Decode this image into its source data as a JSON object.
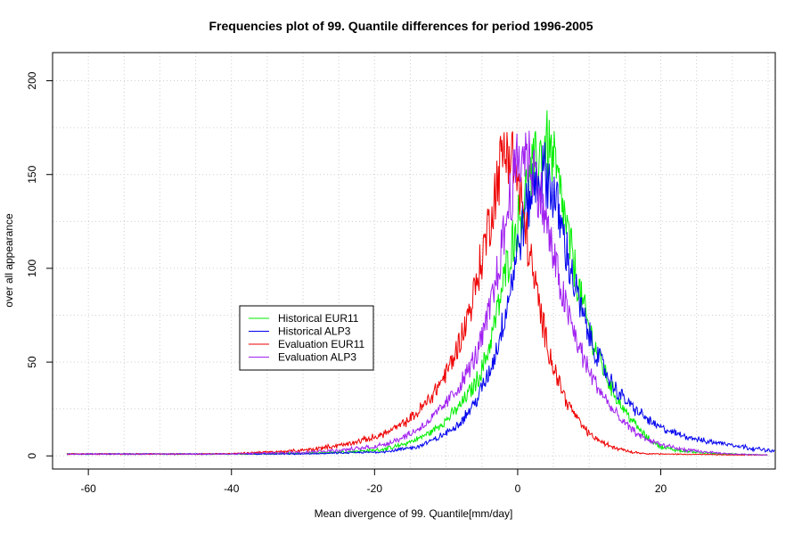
{
  "chart_data": {
    "type": "line",
    "title": "Frequencies plot of 99. Quantile differences for period 1996-2005",
    "xlabel": "Mean divergence of 99. Quantile[mm/day]",
    "ylabel": "over all appearance",
    "xlim": [
      -65,
      36
    ],
    "ylim": [
      -7,
      215
    ],
    "x_ticks": [
      -60,
      -40,
      -20,
      0,
      20
    ],
    "y_ticks": [
      0,
      50,
      100,
      150,
      200
    ],
    "grid": true,
    "legend_position": "center-left",
    "series": [
      {
        "name": "Historical EUR11",
        "color": "#00ee00",
        "points": [
          [
            -63,
            1
          ],
          [
            -50,
            1
          ],
          [
            -40,
            1
          ],
          [
            -35,
            1
          ],
          [
            -30,
            1.5
          ],
          [
            -25,
            2
          ],
          [
            -20,
            3
          ],
          [
            -18,
            4
          ],
          [
            -16,
            6
          ],
          [
            -14,
            9
          ],
          [
            -12,
            13
          ],
          [
            -10,
            19
          ],
          [
            -8,
            27
          ],
          [
            -6,
            38
          ],
          [
            -5,
            46
          ],
          [
            -4,
            58
          ],
          [
            -3,
            74
          ],
          [
            -2,
            92
          ],
          [
            -1,
            110
          ],
          [
            0,
            124
          ],
          [
            1,
            138
          ],
          [
            2,
            150
          ],
          [
            3,
            160
          ],
          [
            4,
            166
          ],
          [
            5,
            157
          ],
          [
            6,
            138
          ],
          [
            7,
            118
          ],
          [
            8,
            99
          ],
          [
            9,
            82
          ],
          [
            10,
            68
          ],
          [
            11,
            56
          ],
          [
            12,
            46
          ],
          [
            13,
            37
          ],
          [
            14,
            30
          ],
          [
            15,
            24
          ],
          [
            16,
            19
          ],
          [
            17,
            14
          ],
          [
            18,
            10
          ],
          [
            19,
            7
          ],
          [
            20,
            5
          ],
          [
            22,
            3
          ],
          [
            25,
            2
          ],
          [
            28,
            1
          ],
          [
            30,
            1
          ],
          [
            35,
            0.5
          ]
        ]
      },
      {
        "name": "Historical ALP3",
        "color": "#0000ee",
        "points": [
          [
            -63,
            1
          ],
          [
            -50,
            1
          ],
          [
            -40,
            1
          ],
          [
            -35,
            1
          ],
          [
            -30,
            1
          ],
          [
            -25,
            1.5
          ],
          [
            -20,
            2
          ],
          [
            -18,
            2.5
          ],
          [
            -16,
            3.5
          ],
          [
            -14,
            5
          ],
          [
            -12,
            8
          ],
          [
            -10,
            12
          ],
          [
            -8,
            18
          ],
          [
            -6,
            28
          ],
          [
            -4,
            44
          ],
          [
            -3,
            56
          ],
          [
            -2,
            72
          ],
          [
            -1,
            90
          ],
          [
            0,
            110
          ],
          [
            1,
            128
          ],
          [
            2,
            142
          ],
          [
            3,
            150
          ],
          [
            4,
            150
          ],
          [
            5,
            140
          ],
          [
            6,
            124
          ],
          [
            7,
            106
          ],
          [
            8,
            90
          ],
          [
            9,
            76
          ],
          [
            10,
            64
          ],
          [
            11,
            55
          ],
          [
            12,
            47
          ],
          [
            13,
            40
          ],
          [
            14,
            34
          ],
          [
            15,
            30
          ],
          [
            16,
            26
          ],
          [
            17,
            23
          ],
          [
            18,
            20
          ],
          [
            19,
            17
          ],
          [
            20,
            15
          ],
          [
            22,
            12
          ],
          [
            24,
            10
          ],
          [
            26,
            8
          ],
          [
            28,
            7
          ],
          [
            30,
            6
          ],
          [
            32,
            4.5
          ],
          [
            34,
            3.5
          ],
          [
            35,
            3
          ],
          [
            36,
            2.5
          ]
        ]
      },
      {
        "name": "Evaluation EUR11",
        "color": "#ee0000",
        "points": [
          [
            -63,
            1
          ],
          [
            -55,
            1
          ],
          [
            -50,
            1
          ],
          [
            -45,
            1
          ],
          [
            -40,
            1.2
          ],
          [
            -38,
            1.5
          ],
          [
            -36,
            2
          ],
          [
            -34,
            2
          ],
          [
            -32,
            2.5
          ],
          [
            -30,
            3
          ],
          [
            -28,
            4
          ],
          [
            -26,
            5
          ],
          [
            -24,
            6
          ],
          [
            -22,
            8
          ],
          [
            -20,
            10
          ],
          [
            -18,
            13
          ],
          [
            -16,
            17
          ],
          [
            -14,
            23
          ],
          [
            -12,
            32
          ],
          [
            -10,
            44
          ],
          [
            -9,
            52
          ],
          [
            -8,
            62
          ],
          [
            -7,
            74
          ],
          [
            -6,
            88
          ],
          [
            -5,
            106
          ],
          [
            -4,
            124
          ],
          [
            -3,
            144
          ],
          [
            -2,
            162
          ],
          [
            -1,
            164
          ],
          [
            0,
            146
          ],
          [
            1,
            124
          ],
          [
            2,
            100
          ],
          [
            3,
            80
          ],
          [
            4,
            62
          ],
          [
            5,
            48
          ],
          [
            6,
            37
          ],
          [
            7,
            28
          ],
          [
            8,
            22
          ],
          [
            9,
            16
          ],
          [
            10,
            12
          ],
          [
            11,
            9
          ],
          [
            12,
            7
          ],
          [
            13,
            5
          ],
          [
            14,
            4
          ],
          [
            15,
            3
          ],
          [
            16,
            2
          ],
          [
            18,
            1.2
          ],
          [
            20,
            1
          ],
          [
            25,
            0.8
          ],
          [
            30,
            0.5
          ],
          [
            35,
            0.5
          ]
        ]
      },
      {
        "name": "Evaluation ALP3",
        "color": "#a020f0",
        "points": [
          [
            -63,
            1
          ],
          [
            -50,
            1
          ],
          [
            -40,
            1
          ],
          [
            -35,
            1.5
          ],
          [
            -30,
            2
          ],
          [
            -25,
            3
          ],
          [
            -22,
            4
          ],
          [
            -20,
            5
          ],
          [
            -18,
            7
          ],
          [
            -16,
            10
          ],
          [
            -14,
            14
          ],
          [
            -12,
            20
          ],
          [
            -10,
            28
          ],
          [
            -8,
            38
          ],
          [
            -6,
            52
          ],
          [
            -5,
            62
          ],
          [
            -4,
            76
          ],
          [
            -3,
            94
          ],
          [
            -2,
            116
          ],
          [
            -1,
            140
          ],
          [
            0,
            156
          ],
          [
            1,
            162
          ],
          [
            2,
            156
          ],
          [
            3,
            142
          ],
          [
            4,
            124
          ],
          [
            5,
            106
          ],
          [
            6,
            90
          ],
          [
            7,
            76
          ],
          [
            8,
            64
          ],
          [
            9,
            54
          ],
          [
            10,
            45
          ],
          [
            11,
            38
          ],
          [
            12,
            32
          ],
          [
            13,
            26
          ],
          [
            14,
            21
          ],
          [
            15,
            17
          ],
          [
            16,
            14
          ],
          [
            17,
            11
          ],
          [
            18,
            9
          ],
          [
            20,
            6
          ],
          [
            22,
            4
          ],
          [
            25,
            2.5
          ],
          [
            28,
            1.5
          ],
          [
            30,
            1
          ],
          [
            35,
            0.5
          ]
        ]
      }
    ],
    "noise_amplitude": [
      0.12,
      0.12,
      0.12,
      0.12
    ]
  }
}
